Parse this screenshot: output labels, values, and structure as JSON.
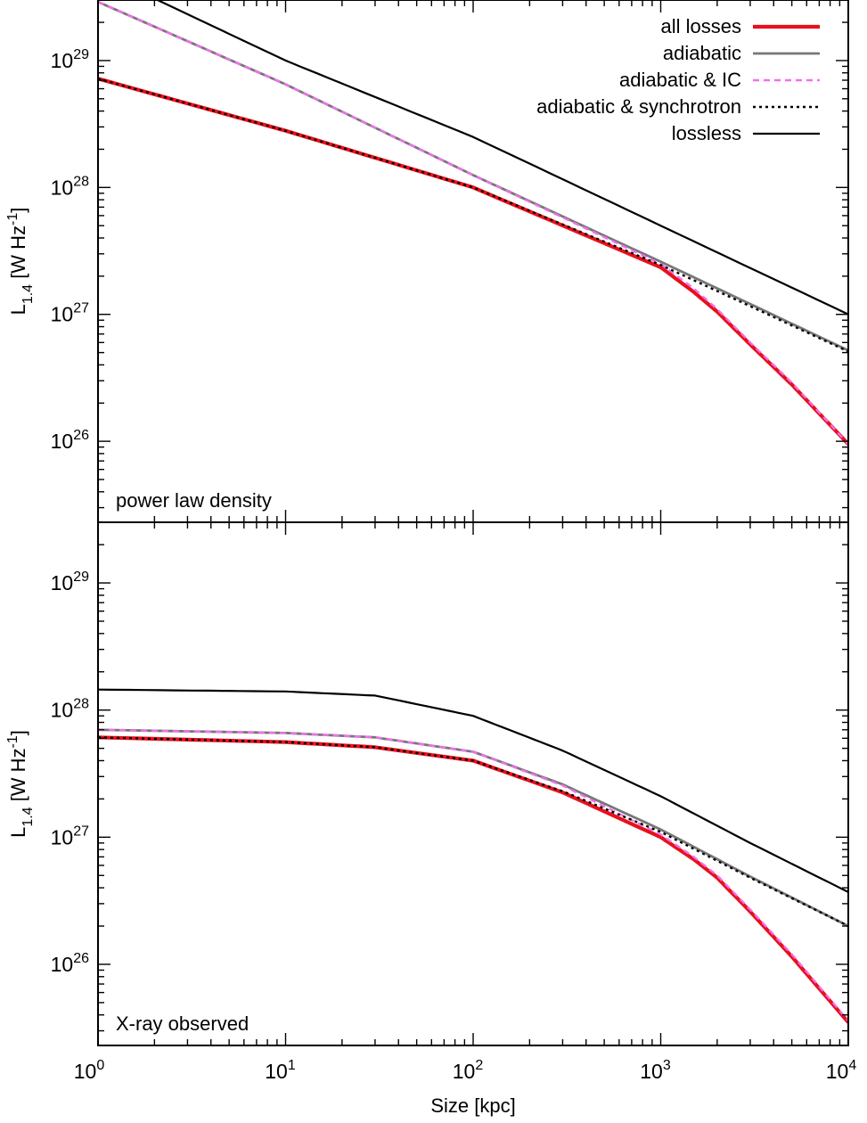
{
  "chart_data": {
    "type": "line",
    "xlabel": "Size [kpc]",
    "ylabel_main": "L",
    "ylabel_sub": "1.4",
    "ylabel_unit_prefix": "[W Hz",
    "ylabel_unit_exp": "-1",
    "ylabel_unit_suffix": "]",
    "xscale": "log",
    "yscale": "log",
    "xlim": [
      1,
      10000
    ],
    "ylim": [
      2.3e+25,
      3e+29
    ],
    "x_tick_labels": [
      {
        "base": "10",
        "exp": "0"
      },
      {
        "base": "10",
        "exp": "1"
      },
      {
        "base": "10",
        "exp": "2"
      },
      {
        "base": "10",
        "exp": "3"
      },
      {
        "base": "10",
        "exp": "4"
      }
    ],
    "y_tick_labels": [
      {
        "base": "10",
        "exp": "26"
      },
      {
        "base": "10",
        "exp": "27"
      },
      {
        "base": "10",
        "exp": "28"
      },
      {
        "base": "10",
        "exp": "29"
      }
    ],
    "legend": {
      "position": "top-right",
      "entries": [
        {
          "label": "all losses",
          "color": "#e8101c",
          "style": "solid-thick"
        },
        {
          "label": "adiabatic",
          "color": "#777777",
          "style": "solid"
        },
        {
          "label": "adiabatic & IC",
          "color": "#f070f0",
          "style": "dashed"
        },
        {
          "label": "adiabatic & synchrotron",
          "color": "#000000",
          "style": "dotted"
        },
        {
          "label": "lossless",
          "color": "#000000",
          "style": "solid-thin"
        }
      ]
    },
    "panels": [
      {
        "annotation": "power law density",
        "series": [
          {
            "key": "lossless",
            "x": [
              1,
              10,
              100,
              1000,
              10000
            ],
            "y": [
              5e+29,
              1e+29,
              2.5e+28,
              5e+27,
              1e+27
            ]
          },
          {
            "key": "adiabatic",
            "x": [
              1,
              10,
              100,
              1000,
              10000
            ],
            "y": [
              2.9e+29,
              6.5e+28,
              1.25e+28,
              2.6e+27,
              5.2e+26
            ]
          },
          {
            "key": "adiabatic & IC",
            "x": [
              1,
              10,
              100,
              1000,
              1500,
              2000,
              3000,
              5000,
              10000
            ],
            "y": [
              2.9e+29,
              6.5e+28,
              1.25e+28,
              2.5e+27,
              1.6e+27,
              1.1e+27,
              6e+26,
              2.9e+26,
              9.5e+25
            ]
          },
          {
            "key": "adiabatic & synchrotron",
            "x": [
              1,
              10,
              100,
              1000,
              10000
            ],
            "y": [
              7.2e+28,
              2.8e+28,
              1e+28,
              2.45e+27,
              5.1e+26
            ]
          },
          {
            "key": "all losses",
            "x": [
              1,
              10,
              100,
              1000,
              1500,
              2000,
              3000,
              5000,
              10000
            ],
            "y": [
              7.2e+28,
              2.8e+28,
              1e+28,
              2.35e+27,
              1.5e+27,
              1.05e+27,
              5.8e+26,
              2.8e+26,
              9.5e+25
            ]
          }
        ]
      },
      {
        "annotation": "X-ray observed",
        "series": [
          {
            "key": "lossless",
            "x": [
              1,
              10,
              30,
              100,
              300,
              1000,
              3000,
              10000
            ],
            "y": [
              1.45e+28,
              1.4e+28,
              1.3e+28,
              9e+27,
              4.8e+27,
              2.1e+27,
              9e+26,
              3.7e+26
            ]
          },
          {
            "key": "adiabatic",
            "x": [
              1,
              10,
              30,
              100,
              300,
              1000,
              3000,
              10000
            ],
            "y": [
              7e+27,
              6.6e+27,
              6.1e+27,
              4.7e+27,
              2.6e+27,
              1.15e+27,
              4.9e+26,
              2e+26
            ]
          },
          {
            "key": "adiabatic & IC",
            "x": [
              1,
              10,
              30,
              100,
              300,
              1000,
              1500,
              2000,
              3000,
              5000,
              10000
            ],
            "y": [
              7e+27,
              6.6e+27,
              6.1e+27,
              4.7e+27,
              2.55e+27,
              1.05e+27,
              7e+26,
              5e+26,
              2.7e+26,
              1.2e+26,
              3.6e+25
            ]
          },
          {
            "key": "adiabatic & synchrotron",
            "x": [
              1,
              10,
              30,
              100,
              300,
              1000,
              3000,
              10000
            ],
            "y": [
              6.1e+27,
              5.6e+27,
              5.1e+27,
              4e+27,
              2.3e+27,
              1.1e+27,
              4.8e+26,
              2e+26
            ]
          },
          {
            "key": "all losses",
            "x": [
              1,
              10,
              30,
              100,
              300,
              1000,
              1500,
              2000,
              3000,
              5000,
              10000
            ],
            "y": [
              6.1e+27,
              5.6e+27,
              5.1e+27,
              4e+27,
              2.25e+27,
              1e+27,
              6.7e+26,
              4.8e+26,
              2.6e+26,
              1.15e+26,
              3.5e+25
            ]
          }
        ]
      }
    ]
  }
}
